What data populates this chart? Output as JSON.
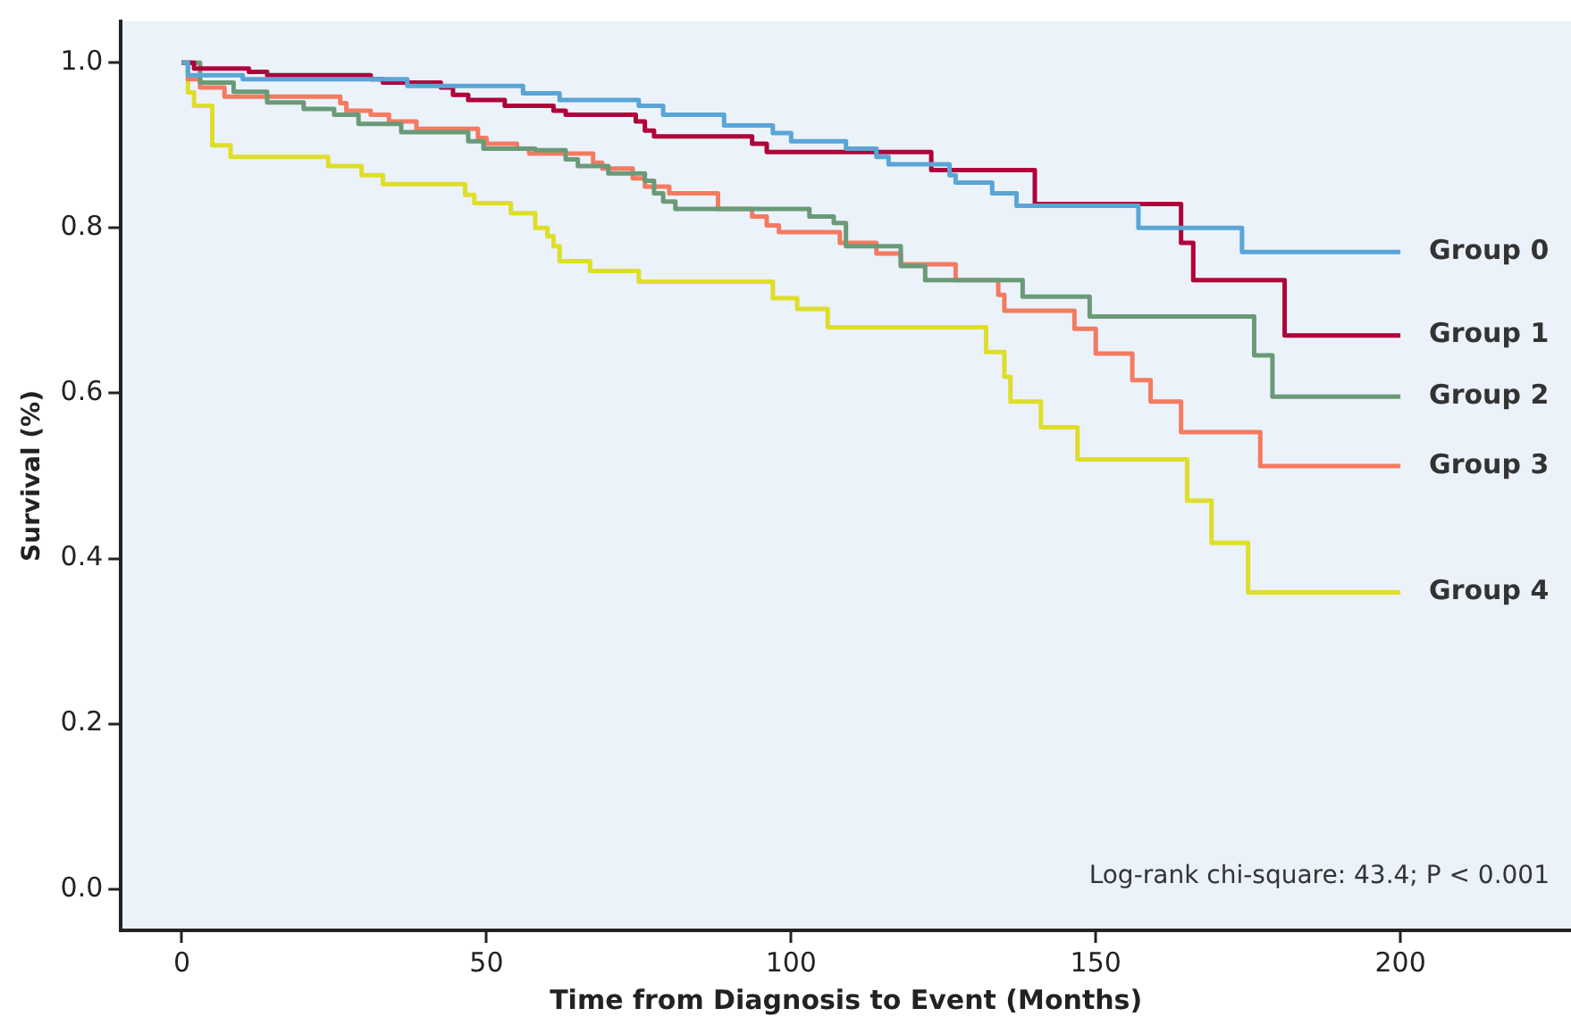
{
  "chart_data": {
    "type": "step",
    "xlabel": "Time from Diagnosis to Event (Months)",
    "ylabel": "Survival (%)",
    "xlim": [
      -10,
      228
    ],
    "ylim": [
      -0.05,
      1.05
    ],
    "xticks": [
      0,
      50,
      100,
      150,
      200
    ],
    "yticks": [
      {
        "value": 0,
        "label": "0.0"
      },
      0.2,
      0.4,
      0.6,
      0.8,
      {
        "value": 1,
        "label": "1.0"
      }
    ],
    "grid": false,
    "legend": false,
    "marker": "none",
    "line_style": "solid",
    "annotations": [
      "Log-rank chi-square: 43.4; P < 0.001"
    ],
    "series": [
      {
        "name": "Group 0",
        "color": "#5aa5d6",
        "x": [
          0,
          1,
          10,
          37,
          56,
          62,
          75,
          79,
          89,
          97,
          100,
          109,
          114,
          116,
          126,
          127,
          133,
          137,
          157,
          174,
          200
        ],
        "values": [
          1,
          0.985,
          0.98,
          0.972,
          0.963,
          0.955,
          0.948,
          0.937,
          0.924,
          0.915,
          0.905,
          0.896,
          0.886,
          0.877,
          0.864,
          0.855,
          0.842,
          0.827,
          0.8,
          0.771,
          0.771
        ]
      },
      {
        "name": "Group 1",
        "color": "#b0003a",
        "x": [
          0,
          2,
          11,
          14,
          31,
          33,
          42.5,
          44.5,
          47,
          53,
          61,
          63,
          74.5,
          76,
          77.5,
          93.6,
          96,
          123,
          140,
          164,
          166,
          181,
          200
        ],
        "values": [
          1,
          0.993,
          0.989,
          0.985,
          0.98,
          0.976,
          0.97,
          0.961,
          0.955,
          0.948,
          0.942,
          0.937,
          0.929,
          0.918,
          0.911,
          0.902,
          0.892,
          0.87,
          0.829,
          0.782,
          0.737,
          0.67,
          0.67
        ]
      },
      {
        "name": "Group 2",
        "color": "#6a9a78",
        "x": [
          0,
          3,
          8.5,
          14,
          20,
          25,
          29,
          36,
          47,
          49.5,
          58,
          63,
          65,
          70,
          76,
          77.5,
          79,
          81,
          103,
          107,
          109,
          118,
          122,
          138,
          149,
          176,
          179,
          200
        ],
        "values": [
          1,
          0.976,
          0.965,
          0.952,
          0.944,
          0.937,
          0.926,
          0.916,
          0.905,
          0.896,
          0.894,
          0.883,
          0.875,
          0.866,
          0.857,
          0.842,
          0.832,
          0.823,
          0.814,
          0.806,
          0.778,
          0.754,
          0.737,
          0.717,
          0.693,
          0.646,
          0.596,
          0.596
        ]
      },
      {
        "name": "Group 3",
        "color": "#f47a60",
        "x": [
          0,
          1,
          3,
          7,
          26,
          27,
          31,
          34,
          38.5,
          48.6,
          50,
          55,
          57,
          67.5,
          69,
          74,
          76,
          80,
          88,
          93.6,
          96,
          98,
          108,
          114,
          118,
          127,
          134,
          135,
          146.5,
          150,
          156,
          159,
          164,
          177,
          200
        ],
        "values": [
          1,
          0.98,
          0.97,
          0.959,
          0.951,
          0.942,
          0.937,
          0.929,
          0.92,
          0.909,
          0.902,
          0.896,
          0.89,
          0.879,
          0.872,
          0.86,
          0.85,
          0.842,
          0.823,
          0.814,
          0.803,
          0.795,
          0.782,
          0.769,
          0.756,
          0.737,
          0.719,
          0.7,
          0.678,
          0.648,
          0.616,
          0.59,
          0.553,
          0.512,
          0.512
        ]
      },
      {
        "name": "Group 4",
        "color": "#dede2a",
        "x": [
          0,
          1,
          2,
          5,
          8,
          24,
          29.5,
          33,
          46.5,
          48,
          54,
          58,
          60,
          61,
          62,
          67,
          75,
          97,
          101,
          106,
          132,
          135,
          136,
          141,
          147,
          165,
          169,
          175,
          200
        ],
        "values": [
          1,
          0.964,
          0.948,
          0.9,
          0.886,
          0.875,
          0.864,
          0.853,
          0.84,
          0.83,
          0.818,
          0.8,
          0.79,
          0.778,
          0.76,
          0.748,
          0.735,
          0.715,
          0.702,
          0.68,
          0.65,
          0.62,
          0.59,
          0.559,
          0.52,
          0.47,
          0.419,
          0.359,
          0.359
        ]
      }
    ]
  }
}
